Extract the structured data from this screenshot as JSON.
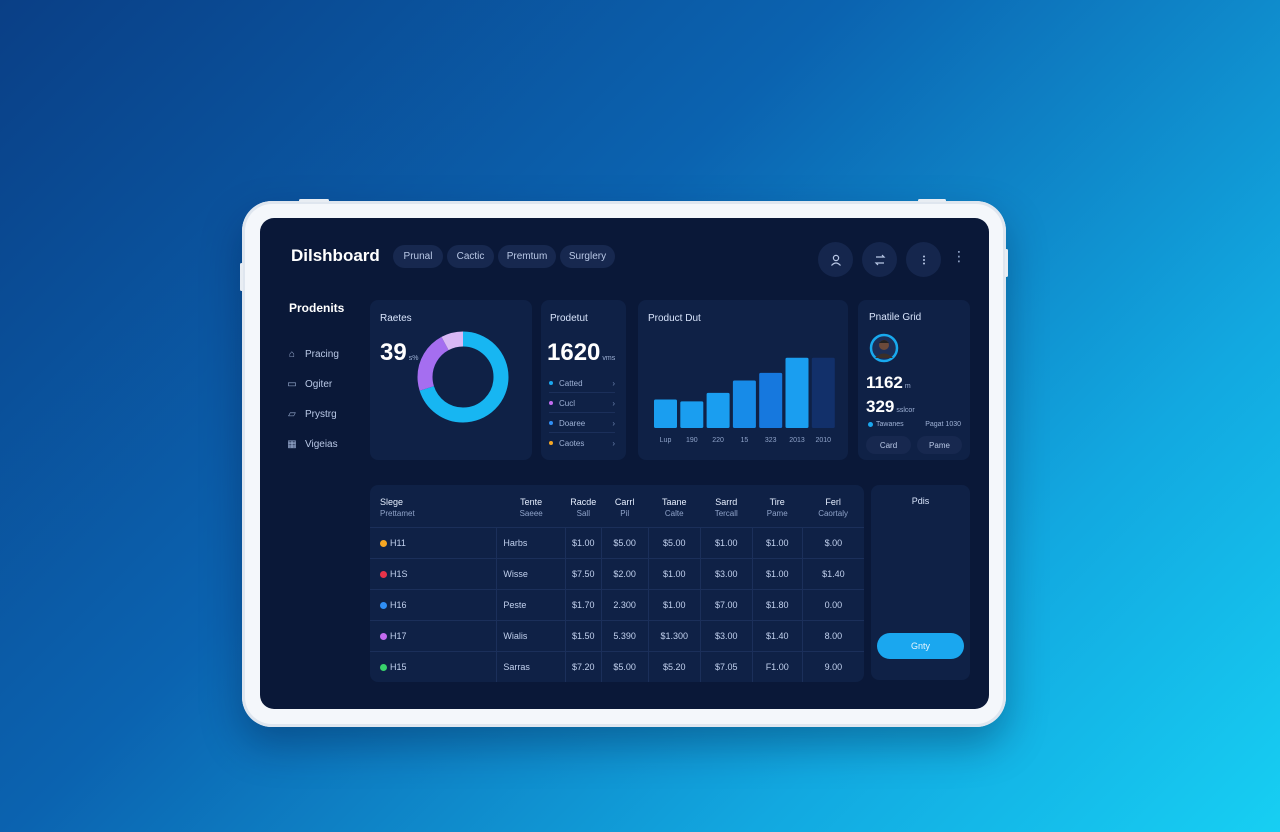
{
  "app_title": "Dilshboard",
  "tabs": [
    "Prunal",
    "Cactic",
    "Premtum",
    "Surglery"
  ],
  "header_icons": [
    "user-icon",
    "swap-icon",
    "more-icon"
  ],
  "sidebar": {
    "heading": "Prodenits",
    "items": [
      {
        "icon": "home-icon",
        "label": "Pracing"
      },
      {
        "icon": "doc-icon",
        "label": "Ogiter"
      },
      {
        "icon": "folder-icon",
        "label": "Prystrg"
      },
      {
        "icon": "grid-icon",
        "label": "Vigeias"
      }
    ]
  },
  "card_sales": {
    "title": "Raetes",
    "value": "39",
    "unit": "s%"
  },
  "card_product": {
    "title": "Prodetut",
    "value": "1620",
    "unit": "vms",
    "legend": [
      {
        "label": "Catted",
        "color": "#1aa7ef"
      },
      {
        "label": "Cucl",
        "color": "#c26bf0"
      },
      {
        "label": "Doaree",
        "color": "#2f8ef5"
      },
      {
        "label": "Caotes",
        "color": "#f5a623"
      }
    ]
  },
  "card_bars": {
    "title": "Product Dut"
  },
  "card_profile": {
    "title": "Pnatile Grid",
    "value1": "1162",
    "unit1": "m",
    "value2": "329",
    "unit2": "sslcor",
    "legend_left": "Tawanes",
    "legend_right": "Pagat 1030",
    "btn1": "Card",
    "btn2": "Pame"
  },
  "chart_data": [
    {
      "type": "pie",
      "title": "Raetes",
      "values": [
        70,
        22,
        8
      ],
      "colors": [
        "#17b6f2",
        "#a56ef0",
        "#d9b8f5"
      ]
    },
    {
      "type": "bar",
      "title": "Product Dut",
      "categories": [
        "Lup",
        "190",
        "220",
        "15",
        "323",
        "2013",
        "2010"
      ],
      "values": [
        30,
        28,
        37,
        50,
        58,
        74,
        74
      ],
      "ylim": [
        0,
        100
      ],
      "colors": [
        "#1a9ef0",
        "#1a9ef0",
        "#1a9ef0",
        "#178be8",
        "#1678de",
        "#1a9ef0",
        "#12306a"
      ]
    }
  ],
  "table": {
    "headers": [
      {
        "top": "Slege",
        "sub": "Prettamet"
      },
      {
        "top": "Tente",
        "sub": "Saeee"
      },
      {
        "top": "Racde",
        "sub": "Sall"
      },
      {
        "top": "Carrl",
        "sub": "Pil"
      },
      {
        "top": "Taane",
        "sub": "Calte"
      },
      {
        "top": "Sarrd",
        "sub": "Tercall"
      },
      {
        "top": "Tire",
        "sub": "Pame"
      },
      {
        "top": "Ferl",
        "sub": "Caortaly"
      }
    ],
    "rows": [
      {
        "dot": "#f5a623",
        "cells": [
          "H11",
          "Harbs",
          "$1.00",
          "$5.00",
          "$5.00",
          "$1.00",
          "$1.00",
          "$.00"
        ]
      },
      {
        "dot": "#e8334a",
        "cells": [
          "H1S",
          "Wisse",
          "$7.50",
          "$2.00",
          "$1.00",
          "$3.00",
          "$1.00",
          "$1.40"
        ]
      },
      {
        "dot": "#2f8ef5",
        "cells": [
          "H16",
          "Peste",
          "$1.70",
          "2.300",
          "$1.00",
          "$7.00",
          "$1.80",
          "0.00"
        ]
      },
      {
        "dot": "#c26bf0",
        "cells": [
          "H17",
          "Wialis",
          "$1.50",
          "5.390",
          "$1.300",
          "$3.00",
          "$1.40",
          "8.00"
        ]
      },
      {
        "dot": "#38d26b",
        "cells": [
          "H15",
          "Sarras",
          "$7.20",
          "$5.00",
          "$5.20",
          "$7.05",
          "F1.00",
          "9.00"
        ]
      }
    ]
  },
  "right_panel": {
    "title": "Pdis",
    "button": "Gnty"
  }
}
